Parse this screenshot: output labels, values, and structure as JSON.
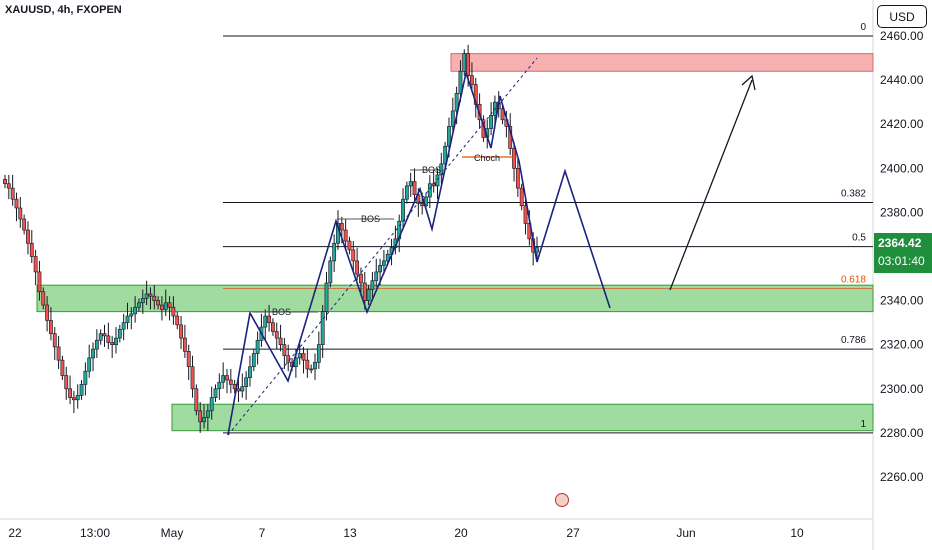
{
  "symbol_title": "XAUUSD, 4h, FXOPEN",
  "currency_button": "USD",
  "current_price": "2364.42",
  "countdown": "03:01:40",
  "colors": {
    "up": "#26a69a",
    "down": "#ef5350",
    "candle_outline": "#131722",
    "path": "#1a237e",
    "supply": "#f7a3a3",
    "demand": "#8fd68f",
    "accent_orange": "#e65100",
    "price_tag": "#1f8f3d"
  },
  "chart_data": {
    "type": "candlestick",
    "title": "XAUUSD, 4h, FXOPEN",
    "y_axis": {
      "range": [
        2240,
        2465
      ],
      "ticks": [
        2260,
        2280,
        2300,
        2320,
        2340,
        2360,
        2380,
        2400,
        2420,
        2440,
        2460
      ],
      "tick_labels": [
        "2260.00",
        "2280.00",
        "2300.00",
        "2320.00",
        "2340.00",
        "2360.00",
        "2380.00",
        "2400.00",
        "2420.00",
        "2440.00",
        "2460.00"
      ]
    },
    "x_axis": {
      "labels": [
        "22",
        "13:00",
        "May",
        "7",
        "13",
        "20",
        "27",
        "Jun",
        "10"
      ]
    },
    "fibonacci": [
      {
        "level": "0",
        "price": 2460
      },
      {
        "level": "0.382",
        "price": 2384.5
      },
      {
        "level": "0.5",
        "price": 2364.5
      },
      {
        "level": "0.618",
        "price": 2345.5
      },
      {
        "level": "0.786",
        "price": 2318
      },
      {
        "level": "1",
        "price": 2280
      }
    ],
    "zones": [
      {
        "type": "supply",
        "top": 2452,
        "bottom": 2444
      },
      {
        "type": "demand",
        "top": 2347,
        "bottom": 2335
      },
      {
        "type": "demand",
        "top": 2293,
        "bottom": 2281
      }
    ],
    "annotations": [
      "BOS",
      "BOS",
      "BOS",
      "Choch"
    ],
    "series_close": [
      2393,
      2391,
      2386,
      2382,
      2377,
      2372,
      2366,
      2360,
      2353,
      2344,
      2338,
      2331,
      2325,
      2319,
      2313,
      2306,
      2300,
      2296,
      2295,
      2297,
      2302,
      2308,
      2314,
      2318,
      2322,
      2325,
      2324,
      2321,
      2320,
      2323,
      2327,
      2330,
      2333,
      2334,
      2337,
      2339,
      2341,
      2343,
      2342,
      2340,
      2338,
      2336,
      2339,
      2337,
      2333,
      2329,
      2323,
      2317,
      2310,
      2300,
      2290,
      2285,
      2287,
      2290,
      2296,
      2300,
      2303,
      2306,
      2304,
      2302,
      2300,
      2299,
      2301,
      2305,
      2310,
      2316,
      2322,
      2328,
      2333,
      2330,
      2326,
      2323,
      2320,
      2315,
      2312,
      2310,
      2314,
      2316,
      2313,
      2309,
      2309,
      2312,
      2320,
      2335,
      2348,
      2358,
      2366,
      2375,
      2372,
      2367,
      2363,
      2358,
      2352,
      2348,
      2340,
      2345,
      2349,
      2353,
      2356,
      2358,
      2361,
      2364,
      2368,
      2376,
      2386,
      2392,
      2394,
      2388,
      2384,
      2383,
      2387,
      2393,
      2392,
      2397,
      2402,
      2410,
      2419,
      2426,
      2434,
      2444,
      2452,
      2442,
      2438,
      2429,
      2422,
      2414,
      2418,
      2424,
      2430,
      2427,
      2422,
      2419,
      2409,
      2400,
      2391,
      2383,
      2375,
      2368,
      2362,
      2364
    ]
  },
  "projection_note": "",
  "labels": {
    "bos1": "BOS",
    "bos2": "BOS",
    "bos3": "BOS",
    "choch": "Choch"
  }
}
